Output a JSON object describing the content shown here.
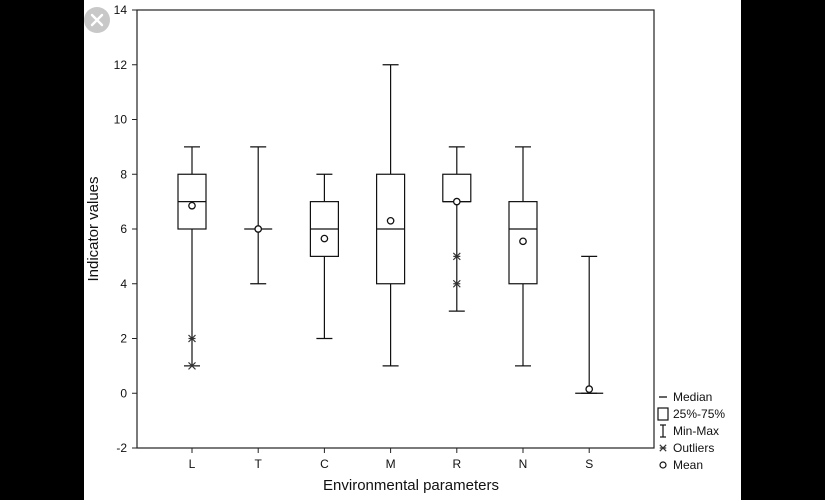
{
  "chart_data": {
    "type": "box",
    "xlabel": "Environmental parameters",
    "ylabel": "Indicator values",
    "ylim": [
      -2,
      14
    ],
    "yticks": [
      -2,
      0,
      2,
      4,
      6,
      8,
      10,
      12,
      14
    ],
    "categories": [
      "L",
      "T",
      "C",
      "M",
      "R",
      "N",
      "S"
    ],
    "boxes": [
      {
        "label": "L",
        "min": 1,
        "q1": 6,
        "median": 7,
        "q3": 8,
        "max": 9,
        "mean": 6.85,
        "outliers": [
          1,
          2
        ]
      },
      {
        "label": "T",
        "min": 4,
        "q1": 6,
        "median": 6,
        "q3": 6,
        "max": 9,
        "mean": 6.0,
        "outliers": []
      },
      {
        "label": "C",
        "min": 2,
        "q1": 5,
        "median": 6,
        "q3": 7,
        "max": 8,
        "mean": 5.65,
        "outliers": []
      },
      {
        "label": "M",
        "min": 1,
        "q1": 4,
        "median": 6,
        "q3": 8,
        "max": 12,
        "mean": 6.3,
        "outliers": []
      },
      {
        "label": "R",
        "min": 3,
        "q1": 7,
        "median": 7,
        "q3": 8,
        "max": 9,
        "mean": 7.0,
        "outliers": [
          4,
          5
        ]
      },
      {
        "label": "N",
        "min": 1,
        "q1": 4,
        "median": 6,
        "q3": 7,
        "max": 9,
        "mean": 5.55,
        "outliers": []
      },
      {
        "label": "S",
        "min": 0,
        "q1": 0,
        "median": 0,
        "q3": 0,
        "max": 5,
        "mean": 0.15,
        "outliers": []
      }
    ],
    "legend": {
      "position": "bottom-right-outside",
      "items": [
        {
          "symbol": "median-line",
          "label": "Median"
        },
        {
          "symbol": "box",
          "label": "25%-75%"
        },
        {
          "symbol": "whisker",
          "label": "Min-Max"
        },
        {
          "symbol": "asterisk",
          "label": "Outliers"
        },
        {
          "symbol": "circle",
          "label": "Mean"
        }
      ]
    },
    "grid": false
  },
  "ui": {
    "close_icon": "close-icon",
    "close_symbol": "✕"
  }
}
